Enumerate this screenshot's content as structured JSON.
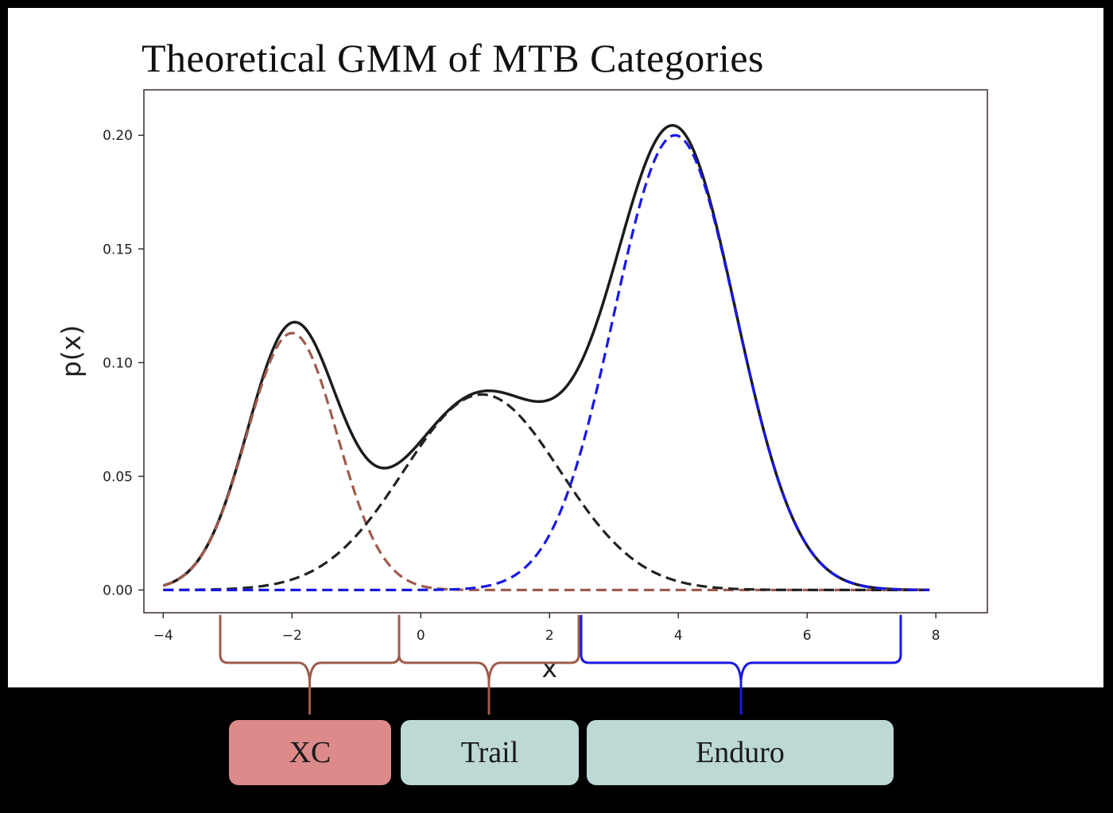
{
  "chart_data": {
    "type": "line",
    "title": "Theoretical GMM of MTB Categories",
    "xlabel": "x",
    "ylabel": "p(x)",
    "xlim": [
      -4.3,
      8.8
    ],
    "ylim": [
      -0.01,
      0.22
    ],
    "xticks": [
      -4,
      -2,
      0,
      2,
      4,
      6,
      8
    ],
    "xtick_labels": [
      "−4",
      "−2",
      "0",
      "2",
      "4",
      "6",
      "8"
    ],
    "yticks": [
      0.0,
      0.05,
      0.1,
      0.15,
      0.2
    ],
    "ytick_labels": [
      "0.00",
      "0.05",
      "0.10",
      "0.15",
      "0.20"
    ],
    "x_range": [
      -4.0,
      7.9
    ],
    "grid": false,
    "components": [
      {
        "mean": -2.0,
        "std": 0.7,
        "peak": 0.113,
        "color": "#9e5b4d",
        "style": "dashed"
      },
      {
        "mean": 0.95,
        "std": 1.22,
        "peak": 0.086,
        "color": "#222222",
        "style": "dashed"
      },
      {
        "mean": 3.95,
        "std": 0.95,
        "peak": 0.2,
        "color": "#1818e6",
        "style": "dashed"
      }
    ],
    "mixture": {
      "color": "#1c1c1c",
      "style": "solid",
      "description": "sum of components"
    }
  },
  "categories": [
    {
      "label": "XC",
      "color": "#dc8a8a",
      "brace_color": "#9e5b4d"
    },
    {
      "label": "Trail",
      "color": "#bcd9d6",
      "brace_color": "#9e5b4d"
    },
    {
      "label": "Enduro",
      "color": "#bcd9d6",
      "brace_color": "#1818e6"
    }
  ]
}
